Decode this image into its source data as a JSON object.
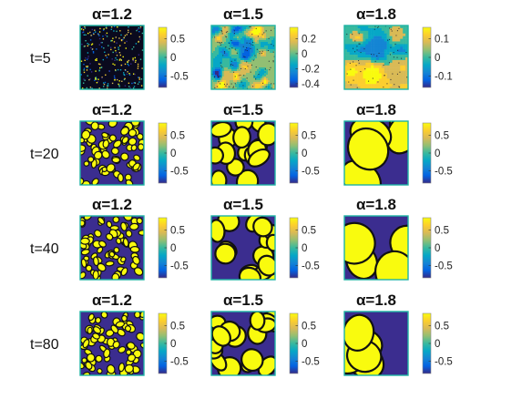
{
  "chart_data": {
    "type": "heatmap",
    "layout": "4 rows x 3 columns of 2D field snapshots, each with its own colorbar (parula colormap)",
    "colormap": [
      "#352a87",
      "#0363e1",
      "#1485d4",
      "#06a7c6",
      "#38b99e",
      "#92bf73",
      "#d9ba56",
      "#fcce2e",
      "#f9fb0e"
    ],
    "frame_color": "#1fb3a4",
    "columns": [
      {
        "title": "α=1.2"
      },
      {
        "title": "α=1.5"
      },
      {
        "title": "α=1.8"
      }
    ],
    "rows": [
      {
        "label": "t=5"
      },
      {
        "label": "t=20"
      },
      {
        "label": "t=40"
      },
      {
        "label": "t=80"
      }
    ],
    "panels": [
      [
        {
          "title": "α=1.2",
          "color_range": [
            -0.8,
            0.8
          ],
          "ticks": [
            {
              "v": 0.5,
              "t": "0.5"
            },
            {
              "v": 0,
              "t": "0"
            },
            {
              "v": -0.5,
              "t": "-0.5"
            }
          ],
          "pattern": "fine noise"
        },
        {
          "title": "α=1.5",
          "color_range": [
            -0.45,
            0.35
          ],
          "ticks": [
            {
              "v": 0.2,
              "t": "0.2"
            },
            {
              "v": 0,
              "t": "0"
            },
            {
              "v": -0.2,
              "t": "-0.2"
            },
            {
              "v": -0.4,
              "t": "-0.4"
            }
          ],
          "pattern": "mottled"
        },
        {
          "title": "α=1.8",
          "color_range": [
            -0.16,
            0.16
          ],
          "ticks": [
            {
              "v": 0.1,
              "t": "0.1"
            },
            {
              "v": 0,
              "t": "0"
            },
            {
              "v": -0.1,
              "t": "-0.1"
            }
          ],
          "pattern": "smooth contours"
        }
      ],
      [
        {
          "title": "α=1.2",
          "color_range": [
            -0.85,
            0.85
          ],
          "ticks": [
            {
              "v": 0.5,
              "t": "0.5"
            },
            {
              "v": 0,
              "t": "0"
            },
            {
              "v": -0.5,
              "t": "-0.5"
            }
          ],
          "pattern": "small domains"
        },
        {
          "title": "α=1.5",
          "color_range": [
            -0.85,
            0.85
          ],
          "ticks": [
            {
              "v": 0.5,
              "t": "0.5"
            },
            {
              "v": 0,
              "t": "0"
            },
            {
              "v": -0.5,
              "t": "-0.5"
            }
          ],
          "pattern": "medium domains"
        },
        {
          "title": "α=1.8",
          "color_range": [
            -0.85,
            0.85
          ],
          "ticks": [
            {
              "v": 0.5,
              "t": "0.5"
            },
            {
              "v": 0,
              "t": "0"
            },
            {
              "v": -0.5,
              "t": "-0.5"
            }
          ],
          "pattern": "large domains"
        }
      ],
      [
        {
          "title": "α=1.2",
          "color_range": [
            -0.85,
            0.85
          ],
          "ticks": [
            {
              "v": 0.5,
              "t": "0.5"
            },
            {
              "v": 0,
              "t": "0"
            },
            {
              "v": -0.5,
              "t": "-0.5"
            }
          ],
          "pattern": "small domains"
        },
        {
          "title": "α=1.5",
          "color_range": [
            -0.85,
            0.85
          ],
          "ticks": [
            {
              "v": 0.5,
              "t": "0.5"
            },
            {
              "v": 0,
              "t": "0"
            },
            {
              "v": -0.5,
              "t": "-0.5"
            }
          ],
          "pattern": "medium domains"
        },
        {
          "title": "α=1.8",
          "color_range": [
            -0.85,
            0.85
          ],
          "ticks": [
            {
              "v": 0.5,
              "t": "0.5"
            },
            {
              "v": 0,
              "t": "0"
            },
            {
              "v": -0.5,
              "t": "-0.5"
            }
          ],
          "pattern": "large domains"
        }
      ],
      [
        {
          "title": "α=1.2",
          "color_range": [
            -0.85,
            0.85
          ],
          "ticks": [
            {
              "v": 0.5,
              "t": "0.5"
            },
            {
              "v": 0,
              "t": "0"
            },
            {
              "v": -0.5,
              "t": "-0.5"
            }
          ],
          "pattern": "small domains"
        },
        {
          "title": "α=1.5",
          "color_range": [
            -0.85,
            0.85
          ],
          "ticks": [
            {
              "v": 0.5,
              "t": "0.5"
            },
            {
              "v": 0,
              "t": "0"
            },
            {
              "v": -0.5,
              "t": "-0.5"
            }
          ],
          "pattern": "medium domains"
        },
        {
          "title": "α=1.8",
          "color_range": [
            -0.85,
            0.85
          ],
          "ticks": [
            {
              "v": 0.5,
              "t": "0.5"
            },
            {
              "v": 0,
              "t": "0"
            },
            {
              "v": -0.5,
              "t": "-0.5"
            }
          ],
          "pattern": "large domains"
        }
      ]
    ]
  }
}
